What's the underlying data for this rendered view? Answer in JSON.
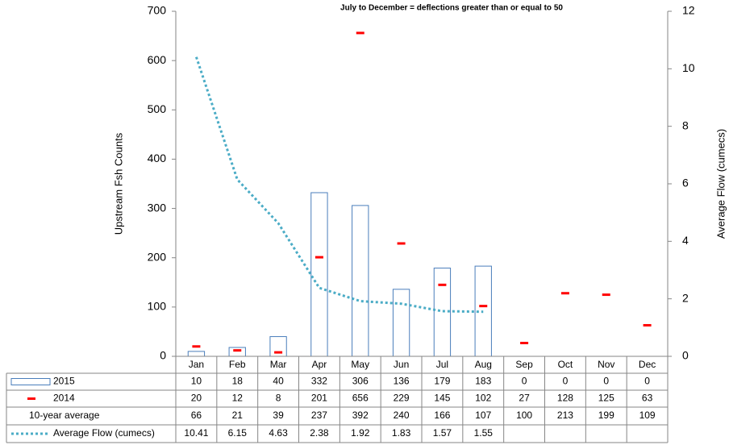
{
  "chart_data": {
    "type": "bar",
    "title": "July to December = deflections greater than or equal to 50",
    "ylabel": "Upstream Fsh Counts",
    "y2label": "Average Flow (cumecs)",
    "categories": [
      "Jan",
      "Feb",
      "Mar",
      "Apr",
      "May",
      "Jun",
      "Jul",
      "Aug",
      "Sep",
      "Oct",
      "Nov",
      "Dec"
    ],
    "series": [
      {
        "name": "2015",
        "type": "bar",
        "color": "#4a7ebb",
        "values": [
          10,
          18,
          40,
          332,
          306,
          136,
          179,
          183,
          0,
          0,
          0,
          0
        ]
      },
      {
        "name": "2014",
        "type": "dash",
        "color": "#ff0000",
        "values": [
          20,
          12,
          8,
          201,
          656,
          229,
          145,
          102,
          27,
          128,
          125,
          63
        ]
      },
      {
        "name": "10-year average",
        "type": "table",
        "values": [
          66,
          21,
          39,
          237,
          392,
          240,
          166,
          107,
          100,
          213,
          199,
          109
        ]
      },
      {
        "name": "Average Flow (cumecs)",
        "type": "line",
        "color": "#4bacc6",
        "axis": "y2",
        "values": [
          10.41,
          6.15,
          4.63,
          2.38,
          1.92,
          1.83,
          1.57,
          1.55,
          null,
          null,
          null,
          null
        ]
      }
    ],
    "ylim": [
      0,
      700
    ],
    "yticks": [
      0,
      100,
      200,
      300,
      400,
      500,
      600,
      700
    ],
    "y2lim": [
      0,
      12
    ],
    "y2ticks": [
      0,
      2,
      4,
      6,
      8,
      10,
      12
    ],
    "grid": false
  }
}
